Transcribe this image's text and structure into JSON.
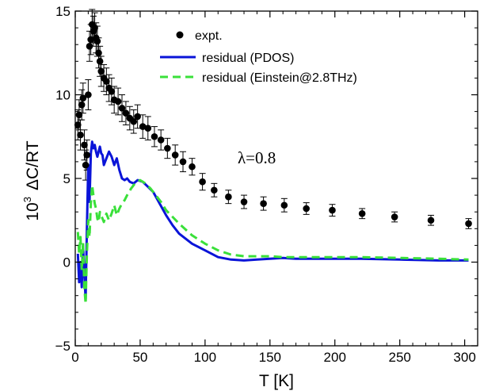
{
  "chart_data": {
    "type": "scatter",
    "xlabel": "T  [K]",
    "ylabel_base": "10",
    "ylabel_exp": "3",
    "ylabel_rest": "ΔC/RT",
    "xlim": [
      0,
      310
    ],
    "ylim": [
      -5,
      15
    ],
    "xticks": [
      0,
      50,
      100,
      150,
      200,
      250,
      300
    ],
    "yticks": [
      -5,
      0,
      5,
      10,
      15
    ],
    "xtick_labels": [
      "0",
      "50",
      "100",
      "150",
      "200",
      "250",
      "300"
    ],
    "ytick_labels": [
      "−5",
      "0",
      "5",
      "10",
      "15"
    ],
    "annotation": "λ=0.8",
    "series": [
      {
        "name": "expt.",
        "kind": "points_with_errorbars",
        "color": "#000000",
        "x": [
          2,
          3,
          4,
          5,
          6,
          7,
          8,
          9,
          10,
          11,
          12,
          13,
          14,
          15,
          16,
          17,
          18,
          19,
          20,
          22,
          24,
          26,
          28,
          30,
          33,
          36,
          39,
          42,
          45,
          48,
          52,
          56,
          61,
          66,
          71,
          77,
          83,
          90,
          98,
          107,
          118,
          130,
          145,
          161,
          178,
          198,
          221,
          246,
          274,
          303
        ],
        "y": [
          8.2,
          8.8,
          7.6,
          9.4,
          9.8,
          7.0,
          5.8,
          6.4,
          10.0,
          12.9,
          13.3,
          14.2,
          13.8,
          14.0,
          13.4,
          13.2,
          12.5,
          12.0,
          11.4,
          11.0,
          10.8,
          10.4,
          10.2,
          9.7,
          9.6,
          9.2,
          8.9,
          8.6,
          8.4,
          8.7,
          8.1,
          8.0,
          7.5,
          7.3,
          6.8,
          6.4,
          6.0,
          5.7,
          4.8,
          4.3,
          3.9,
          3.6,
          3.5,
          3.4,
          3.2,
          3.1,
          2.9,
          2.7,
          2.5,
          2.3
        ],
        "err": [
          0.9,
          0.9,
          0.9,
          0.9,
          0.9,
          0.9,
          0.9,
          0.9,
          0.9,
          0.9,
          0.9,
          0.9,
          0.9,
          0.9,
          0.9,
          0.9,
          0.9,
          0.9,
          0.9,
          0.8,
          0.8,
          0.8,
          0.8,
          0.8,
          0.8,
          0.8,
          0.7,
          0.7,
          0.7,
          0.7,
          0.7,
          0.7,
          0.6,
          0.6,
          0.6,
          0.6,
          0.6,
          0.5,
          0.5,
          0.4,
          0.4,
          0.4,
          0.4,
          0.4,
          0.35,
          0.35,
          0.3,
          0.3,
          0.3,
          0.3
        ]
      },
      {
        "name": "residual (PDOS)",
        "kind": "line",
        "color": "#0a14d8",
        "dash": "solid",
        "x": [
          2,
          3,
          4,
          5,
          6,
          7,
          8,
          9,
          10,
          11,
          12,
          13,
          14,
          15,
          16,
          17,
          18,
          19,
          20,
          21,
          22,
          24,
          26,
          28,
          30,
          32,
          34,
          36,
          38,
          40,
          42,
          45,
          48,
          52,
          56,
          60,
          65,
          70,
          75,
          80,
          90,
          100,
          110,
          120,
          130,
          140,
          150,
          160,
          170,
          180,
          200,
          220,
          250,
          280,
          303
        ],
        "y": [
          0.5,
          -1.2,
          0.0,
          -1.5,
          1.0,
          -0.8,
          -2.2,
          2.0,
          5.8,
          3.6,
          6.5,
          7.2,
          6.8,
          7.0,
          6.6,
          6.3,
          6.6,
          6.9,
          6.5,
          6.4,
          5.8,
          6.2,
          6.6,
          6.3,
          5.8,
          6.2,
          5.5,
          5.0,
          4.9,
          5.0,
          4.8,
          4.7,
          4.9,
          4.8,
          4.5,
          4.2,
          3.5,
          2.8,
          2.2,
          1.7,
          1.1,
          0.7,
          0.3,
          0.15,
          0.1,
          0.15,
          0.2,
          0.25,
          0.2,
          0.2,
          0.2,
          0.2,
          0.15,
          0.1,
          0.1
        ]
      },
      {
        "name": "residual (Einstein@2.8THz)",
        "kind": "line",
        "color": "#3ae03a",
        "dash": "dashed",
        "x": [
          2,
          3,
          4,
          5,
          6,
          7,
          8,
          9,
          10,
          11,
          12,
          13,
          14,
          15,
          16,
          17,
          18,
          19,
          20,
          21,
          22,
          24,
          26,
          28,
          30,
          32,
          34,
          36,
          38,
          40,
          43,
          46,
          50,
          54,
          58,
          62,
          66,
          70,
          75,
          80,
          90,
          100,
          110,
          120,
          130,
          140,
          150,
          160,
          170,
          180,
          200,
          220,
          250,
          280,
          303
        ],
        "y": [
          1.8,
          0.5,
          1.5,
          -0.5,
          1.2,
          -1.5,
          -2.5,
          0.5,
          2.5,
          1.5,
          3.5,
          4.6,
          4.0,
          3.5,
          3.2,
          2.6,
          2.4,
          3.0,
          2.8,
          2.6,
          2.4,
          2.9,
          2.5,
          2.9,
          3.4,
          2.8,
          3.2,
          3.5,
          3.7,
          4.0,
          4.4,
          4.7,
          4.9,
          4.7,
          4.4,
          4.0,
          3.6,
          3.1,
          2.7,
          2.3,
          1.6,
          1.1,
          0.7,
          0.45,
          0.35,
          0.35,
          0.35,
          0.3,
          0.3,
          0.3,
          0.3,
          0.3,
          0.25,
          0.2,
          0.15
        ]
      }
    ],
    "legend_position": "top-center"
  }
}
